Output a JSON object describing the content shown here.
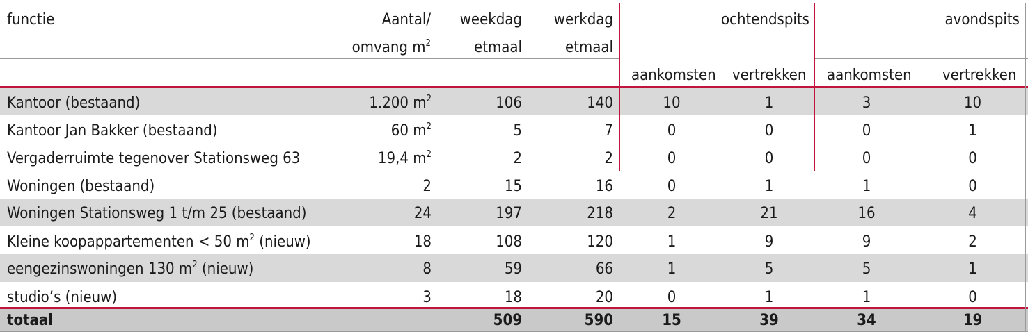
{
  "table": {
    "headers": {
      "functie": "functie",
      "aantal_line1": "Aantal/",
      "aantal_line2": "omvang m",
      "aantal_sup": "2",
      "weekdag_line1": "weekdag",
      "weekdag_line2": "etmaal",
      "werkdag_line1": "werkdag",
      "werkdag_line2": "etmaal",
      "ochtendspits": "ochtendspits",
      "avondspits": "avondspits",
      "ochtend_aankomsten": "aankomsten",
      "ochtend_vertrekken": "vertrekken",
      "avond_aankomsten": "aankomsten",
      "avond_vertrekken": "vertrekken"
    },
    "rows": [
      {
        "functie": "Kantoor (bestaand)",
        "functie_sup": "",
        "functie_after": "",
        "aantal": "1.200 m",
        "aantal_sup": "2",
        "weekdag": "106",
        "werkdag": "140",
        "o_aank": "10",
        "o_vert": "1",
        "a_aank": "3",
        "a_vert": "10"
      },
      {
        "functie": "Kantoor Jan Bakker (bestaand)",
        "functie_sup": "",
        "functie_after": "",
        "aantal": "60 m",
        "aantal_sup": "2",
        "weekdag": "5",
        "werkdag": "7",
        "o_aank": "0",
        "o_vert": "0",
        "a_aank": "0",
        "a_vert": "1"
      },
      {
        "functie": "Vergaderruimte tegenover Stationsweg 63",
        "functie_sup": "",
        "functie_after": "",
        "aantal": "19,4 m",
        "aantal_sup": "2",
        "weekdag": "2",
        "werkdag": "2",
        "o_aank": "0",
        "o_vert": "0",
        "a_aank": "0",
        "a_vert": "0"
      },
      {
        "functie": "Woningen (bestaand)",
        "functie_sup": "",
        "functie_after": "",
        "aantal": "2",
        "aantal_sup": "",
        "weekdag": "15",
        "werkdag": "16",
        "o_aank": "0",
        "o_vert": "1",
        "a_aank": "1",
        "a_vert": "0"
      },
      {
        "functie": "Woningen Stationsweg 1 t/m 25 (bestaand)",
        "functie_sup": "",
        "functie_after": "",
        "aantal": "24",
        "aantal_sup": "",
        "weekdag": "197",
        "werkdag": "218",
        "o_aank": "2",
        "o_vert": "21",
        "a_aank": "16",
        "a_vert": "4"
      },
      {
        "functie": "Kleine koopappartementen < 50 m",
        "functie_sup": "2",
        "functie_after": " (nieuw)",
        "aantal": "18",
        "aantal_sup": "",
        "weekdag": "108",
        "werkdag": "120",
        "o_aank": "1",
        "o_vert": "9",
        "a_aank": "9",
        "a_vert": "2"
      },
      {
        "functie": "eengezinswoningen 130 m",
        "functie_sup": "2",
        "functie_after": " (nieuw)",
        "aantal": "8",
        "aantal_sup": "",
        "weekdag": "59",
        "werkdag": "66",
        "o_aank": "1",
        "o_vert": "5",
        "a_aank": "5",
        "a_vert": "1"
      },
      {
        "functie": "studio’s (nieuw)",
        "functie_sup": "",
        "functie_after": "",
        "aantal": "3",
        "aantal_sup": "",
        "weekdag": "18",
        "werkdag": "20",
        "o_aank": "0",
        "o_vert": "1",
        "a_aank": "1",
        "a_vert": "0"
      }
    ],
    "total": {
      "functie": "totaal",
      "aantal": "",
      "weekdag": "509",
      "werkdag": "590",
      "o_aank": "15",
      "o_vert": "39",
      "a_aank": "34",
      "a_vert": "19"
    }
  },
  "colors": {
    "accent": "#c0143c",
    "band": "#d9d9d9",
    "total_band": "#c9c9c9"
  }
}
